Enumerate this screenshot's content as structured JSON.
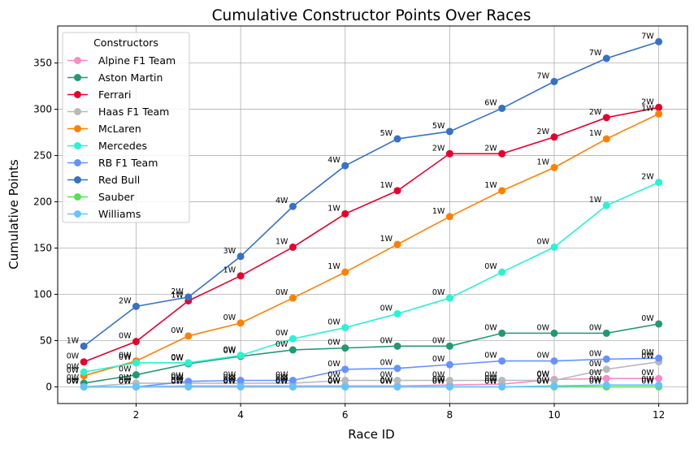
{
  "chart_data": {
    "type": "line",
    "title": "Cumulative Constructor Points Over Races",
    "xlabel": "Race ID",
    "ylabel": "Cumulative Points",
    "xlim": [
      0.5,
      12.55
    ],
    "ylim": [
      -18,
      390
    ],
    "xticks": [
      2,
      4,
      6,
      8,
      10,
      12
    ],
    "yticks": [
      0,
      50,
      100,
      150,
      200,
      250,
      300,
      350
    ],
    "grid": true,
    "legend_title": "Constructors",
    "legend_position": "top-left",
    "x": [
      1,
      2,
      3,
      4,
      5,
      6,
      7,
      8,
      9,
      10,
      11,
      12
    ],
    "series": [
      {
        "name": "Alpine F1 Team",
        "color": "#f98ac6",
        "values": [
          0,
          0,
          1,
          1,
          1,
          1,
          1,
          2,
          3,
          8,
          9,
          9
        ],
        "wins": [
          "0W",
          "0W",
          "0W",
          "0W",
          "0W",
          "0W",
          "0W",
          "0W",
          "0W",
          "0W",
          "0W",
          "0W"
        ]
      },
      {
        "name": "Aston Martin",
        "color": "#229971",
        "values": [
          4,
          13,
          25,
          33,
          40,
          42,
          44,
          44,
          58,
          58,
          58,
          68
        ],
        "wins": [
          "0W",
          "0W",
          "0W",
          "0W",
          "0W",
          "0W",
          "0W",
          "0W",
          "0W",
          "0W",
          "0W",
          "0W"
        ]
      },
      {
        "name": "Ferrari",
        "color": "#e8002d",
        "values": [
          27,
          49,
          93,
          120,
          151,
          187,
          212,
          252,
          252,
          270,
          291,
          302
        ],
        "wins": [
          "0W",
          "0W",
          "1W",
          "1W",
          "1W",
          "1W",
          "1W",
          "2W",
          "2W",
          "2W",
          "2W",
          "2W"
        ]
      },
      {
        "name": "Haas F1 Team",
        "color": "#b6babd",
        "values": [
          0,
          4,
          4,
          4,
          4,
          7,
          7,
          7,
          7,
          7,
          19,
          27
        ],
        "wins": [
          "0W",
          "0W",
          "0W",
          "0W",
          "0W",
          "0W",
          "0W",
          "0W",
          "0W",
          "0W",
          "0W",
          "0W"
        ]
      },
      {
        "name": "McLaren",
        "color": "#ff8000",
        "values": [
          12,
          28,
          55,
          69,
          96,
          124,
          154,
          184,
          212,
          237,
          268,
          295
        ],
        "wins": [
          "0W",
          "0W",
          "0W",
          "0W",
          "0W",
          "1W",
          "1W",
          "1W",
          "1W",
          "1W",
          "1W",
          "1W"
        ]
      },
      {
        "name": "Mercedes",
        "color": "#27f4d2",
        "values": [
          16,
          26,
          26,
          34,
          52,
          64,
          79,
          96,
          124,
          151,
          196,
          221
        ],
        "wins": [
          "0W",
          "0W",
          "0W",
          "0W",
          "0W",
          "0W",
          "0W",
          "0W",
          "0W",
          "0W",
          "1W",
          "2W"
        ]
      },
      {
        "name": "RB F1 Team",
        "color": "#6692ff",
        "values": [
          0,
          0,
          6,
          7,
          7,
          19,
          20,
          24,
          28,
          28,
          30,
          31
        ],
        "wins": [
          "0W",
          "0W",
          "0W",
          "0W",
          "0W",
          "0W",
          "0W",
          "0W",
          "0W",
          "0W",
          "0W",
          "0W"
        ]
      },
      {
        "name": "Red Bull",
        "color": "#3671c6",
        "values": [
          44,
          87,
          97,
          141,
          195,
          239,
          268,
          276,
          301,
          330,
          355,
          373
        ],
        "wins": [
          "1W",
          "2W",
          "2W",
          "3W",
          "4W",
          "4W",
          "5W",
          "5W",
          "6W",
          "7W",
          "7W",
          "7W"
        ]
      },
      {
        "name": "Sauber",
        "color": "#52e252",
        "values": [
          0,
          0,
          0,
          0,
          0,
          0,
          0,
          0,
          0,
          0,
          0,
          0
        ],
        "wins": [
          "0W",
          "0W",
          "0W",
          "0W",
          "0W",
          "0W",
          "0W",
          "0W",
          "0W",
          "0W",
          "0W",
          "0W"
        ]
      },
      {
        "name": "Williams",
        "color": "#64c4ff",
        "values": [
          0,
          0,
          0,
          0,
          0,
          0,
          0,
          0,
          0,
          1,
          2,
          2
        ],
        "wins": [
          "0W",
          "0W",
          "0W",
          "0W",
          "0W",
          "0W",
          "0W",
          "0W",
          "0W",
          "0W",
          "0W",
          "0W"
        ]
      }
    ]
  }
}
